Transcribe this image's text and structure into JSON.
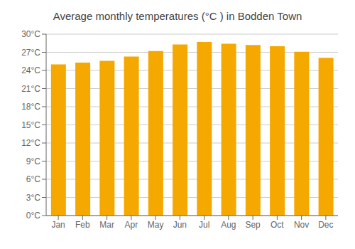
{
  "chart_data": {
    "type": "bar",
    "title": "Average monthly temperatures (°C ) in Bodden Town",
    "categories": [
      "Jan",
      "Feb",
      "Mar",
      "Apr",
      "May",
      "Jun",
      "Jul",
      "Aug",
      "Sep",
      "Oct",
      "Nov",
      "Dec"
    ],
    "values": [
      25.0,
      25.3,
      25.6,
      26.3,
      27.2,
      28.3,
      28.7,
      28.4,
      28.2,
      28.0,
      27.1,
      26.1
    ],
    "color": "#F5A800",
    "ylim": [
      0,
      30
    ],
    "yticks": [
      {
        "value": 0,
        "label": "0°C"
      },
      {
        "value": 3,
        "label": "3°C"
      },
      {
        "value": 6,
        "label": "6°C"
      },
      {
        "value": 9,
        "label": "9°C"
      },
      {
        "value": 12,
        "label": "12°C"
      },
      {
        "value": 15,
        "label": "15°C"
      },
      {
        "value": 18,
        "label": "18°C"
      },
      {
        "value": 21,
        "label": "21°C"
      },
      {
        "value": 24,
        "label": "24°C"
      },
      {
        "value": 27,
        "label": "27°C"
      },
      {
        "value": 30,
        "label": "30°C"
      }
    ],
    "grid": true
  }
}
